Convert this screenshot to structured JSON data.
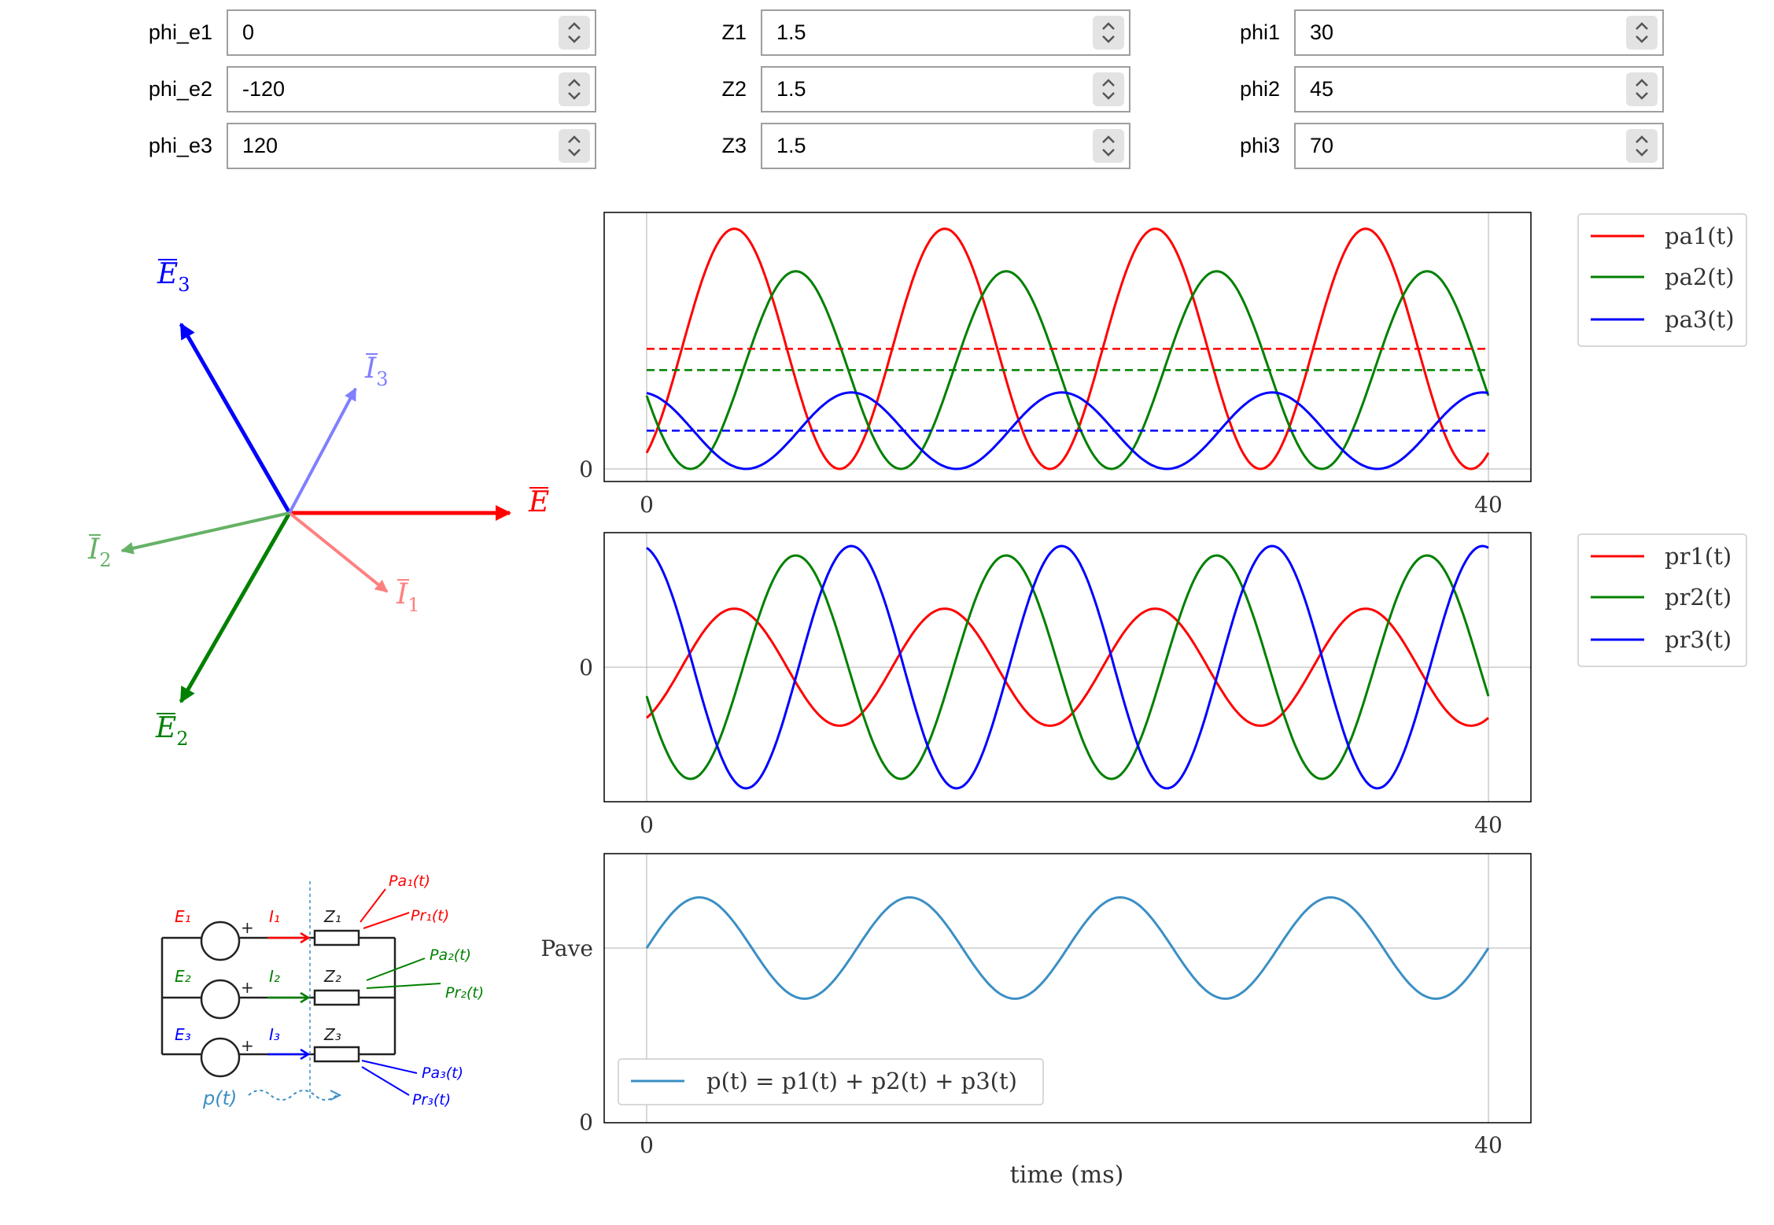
{
  "inputs": {
    "col1": [
      {
        "label": "phi_e1",
        "value": "0"
      },
      {
        "label": "phi_e2",
        "value": "-120"
      },
      {
        "label": "phi_e3",
        "value": "120"
      }
    ],
    "col2": [
      {
        "label": "Z1",
        "value": "1.5"
      },
      {
        "label": "Z2",
        "value": "1.5"
      },
      {
        "label": "Z3",
        "value": "1.5"
      }
    ],
    "col3": [
      {
        "label": "phi1",
        "value": "30"
      },
      {
        "label": "phi2",
        "value": "45"
      },
      {
        "label": "phi3",
        "value": "70"
      }
    ]
  },
  "phasors": {
    "E1": "E",
    "E1_sub": "1",
    "E2": "E",
    "E2_sub": "2",
    "E3": "E",
    "E3_sub": "3",
    "I1": "I",
    "I1_sub": "1",
    "I2": "I",
    "I2_sub": "2",
    "I3": "I",
    "I3_sub": "3"
  },
  "circuit": {
    "E1": "E₁",
    "E2": "E₂",
    "E3": "E₃",
    "I1": "I₁",
    "I2": "I₂",
    "I3": "I₃",
    "Z1": "Z₁",
    "Z2": "Z₂",
    "Z3": "Z₃",
    "pa1": "Pa₁(t)",
    "pr1": "Pr₁(t)",
    "pa2": "Pa₂(t)",
    "pr2": "Pr₂(t)",
    "pa3": "Pa₃(t)",
    "pr3": "Pr₃(t)",
    "p": "p(t)"
  },
  "colors": {
    "red": "#ff0000",
    "green": "#008000",
    "blue": "#0000ff",
    "light_red": "#ff7f7f",
    "light_green": "#66b266",
    "light_blue": "#7f7fff",
    "steel": "#3b8fc4",
    "grid": "#b0b0b0"
  },
  "chart_data": [
    {
      "type": "line",
      "x_range": [
        0,
        40
      ],
      "x_ticks": [
        "0",
        "40"
      ],
      "y_ticks": [
        "0"
      ],
      "x_unit": "ms",
      "grid": true,
      "legend": "outside-right",
      "series": [
        {
          "name": "pa1(t)",
          "color": "#ff0000",
          "mean": 0.644,
          "amp": 0.644,
          "phase_deg": 30
        },
        {
          "name": "pa2(t)",
          "color": "#008000",
          "mean": 0.53,
          "amp": 0.53,
          "phase_deg": -75
        },
        {
          "name": "pa3(t)",
          "color": "#0000ff",
          "mean": 0.205,
          "amp": 0.205,
          "phase_deg": 190
        }
      ]
    },
    {
      "type": "line",
      "x_range": [
        0,
        40
      ],
      "x_ticks": [
        "0",
        "40"
      ],
      "y_ticks": [
        "0"
      ],
      "x_unit": "ms",
      "grid": true,
      "legend": "outside-right",
      "series": [
        {
          "name": "pr1(t)",
          "color": "#ff0000",
          "amp": 0.372,
          "phase_deg": 30
        },
        {
          "name": "pr2(t)",
          "color": "#008000",
          "amp": 0.71,
          "phase_deg": -75
        },
        {
          "name": "pr3(t)",
          "color": "#0000ff",
          "amp": 0.77,
          "phase_deg": 190
        }
      ]
    },
    {
      "type": "line",
      "x_range": [
        0,
        40
      ],
      "x_ticks": [
        "0",
        "40"
      ],
      "y_ticks": [
        "0",
        "Pave"
      ],
      "xlabel": "time (ms)",
      "grid": true,
      "legend": "lower-left",
      "series": [
        {
          "name": "p(t) = p1(t) + p2(t) + p3(t)",
          "color": "#3b8fc4",
          "mean": 1.0,
          "amp": 0.29,
          "phase_deg": 90
        }
      ]
    }
  ]
}
